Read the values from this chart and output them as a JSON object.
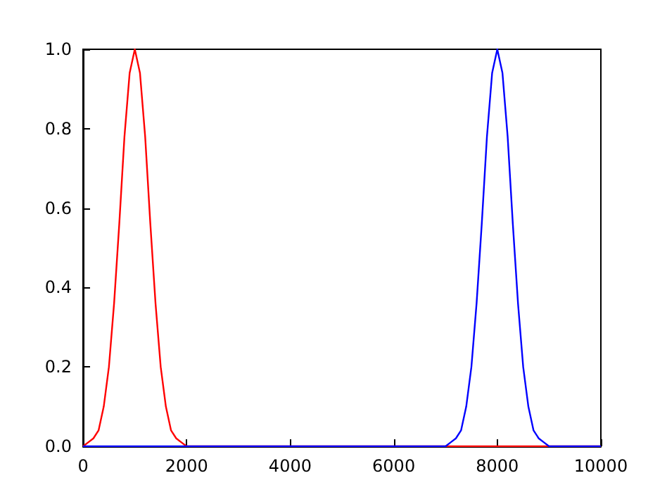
{
  "chart_data": {
    "type": "line",
    "xlim": [
      0,
      10000
    ],
    "ylim": [
      0,
      1
    ],
    "xticks": [
      0,
      2000,
      4000,
      6000,
      8000,
      10000
    ],
    "yticks": [
      {
        "value": 0,
        "label": "0.0"
      },
      {
        "value": 0.2,
        "label": "0.2"
      },
      {
        "value": 0.4,
        "label": "0.4"
      },
      {
        "value": 0.6,
        "label": "0.6"
      },
      {
        "value": 0.8,
        "label": "0.8"
      },
      {
        "value": 1,
        "label": "1.0"
      }
    ],
    "grid": false,
    "series": [
      {
        "color": "#ff0000",
        "x": [
          0,
          100,
          200,
          300,
          400,
          500,
          600,
          700,
          800,
          900,
          1000,
          1100,
          1200,
          1300,
          1400,
          1500,
          1600,
          1700,
          1800,
          1900,
          2000,
          10000
        ],
        "values": [
          0,
          0.01,
          0.02,
          0.04,
          0.1,
          0.2,
          0.36,
          0.56,
          0.78,
          0.94,
          1,
          0.94,
          0.78,
          0.56,
          0.36,
          0.2,
          0.1,
          0.04,
          0.02,
          0.01,
          0,
          0
        ]
      },
      {
        "color": "#0000ff",
        "x": [
          0,
          7000,
          7100,
          7200,
          7300,
          7400,
          7500,
          7600,
          7700,
          7800,
          7900,
          8000,
          8100,
          8200,
          8300,
          8400,
          8500,
          8600,
          8700,
          8800,
          8900,
          9000,
          10000
        ],
        "values": [
          0,
          0,
          0.01,
          0.02,
          0.04,
          0.1,
          0.2,
          0.36,
          0.56,
          0.78,
          0.94,
          1,
          0.94,
          0.78,
          0.56,
          0.36,
          0.2,
          0.1,
          0.04,
          0.02,
          0.01,
          0,
          0
        ]
      }
    ]
  }
}
